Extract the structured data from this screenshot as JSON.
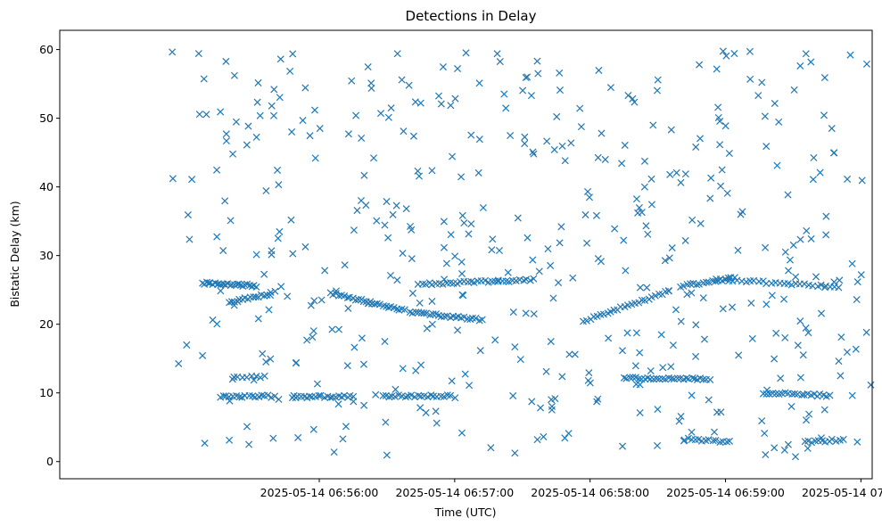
{
  "chart_data": {
    "type": "scatter",
    "title": "Detections in Delay",
    "xlabel": "Time (UTC)",
    "ylabel": "Bistatic Delay (km)",
    "marker": "x",
    "color": "#1f77b4",
    "xlim_seconds_after_0655": [
      -55,
      305
    ],
    "ylim": [
      -2.5,
      62.8
    ],
    "x_ticks": [
      {
        "value": 60,
        "label": "2025-05-14 06:56:00"
      },
      {
        "value": 120,
        "label": "2025-05-14 06:57:00"
      },
      {
        "value": 180,
        "label": "2025-05-14 06:58:00"
      },
      {
        "value": 240,
        "label": "2025-05-14 06:59:00"
      },
      {
        "value": 300,
        "label": "2025-05-14 07:00:00"
      }
    ],
    "y_ticks": [
      {
        "value": 0,
        "label": "0"
      },
      {
        "value": 10,
        "label": "10"
      },
      {
        "value": 20,
        "label": "20"
      },
      {
        "value": 30,
        "label": "30"
      },
      {
        "value": 40,
        "label": "40"
      },
      {
        "value": 50,
        "label": "50"
      },
      {
        "value": 60,
        "label": "60"
      }
    ],
    "x_units": "seconds after 2025-05-14 06:55:00 UTC",
    "tracks": [
      {
        "name": "track-26km-a",
        "x_start": 8,
        "x_end": 32,
        "y_start": 26.0,
        "y_end": 25.6,
        "count": 26
      },
      {
        "name": "track-24km",
        "x_start": 20,
        "x_end": 38,
        "y_start": 23.2,
        "y_end": 24.4,
        "count": 16
      },
      {
        "name": "track-desc-a",
        "x_start": 65,
        "x_end": 98,
        "y_start": 24.5,
        "y_end": 22.0,
        "count": 28
      },
      {
        "name": "track-desc-b",
        "x_start": 100,
        "x_end": 132,
        "y_start": 21.8,
        "y_end": 20.6,
        "count": 26
      },
      {
        "name": "track-26km-b",
        "x_start": 104,
        "x_end": 155,
        "y_start": 25.8,
        "y_end": 26.5,
        "count": 34
      },
      {
        "name": "track-rise",
        "x_start": 177,
        "x_end": 215,
        "y_start": 20.5,
        "y_end": 24.8,
        "count": 26
      },
      {
        "name": "track-arc",
        "x_start": 220,
        "x_end": 244,
        "y_start": 25.5,
        "y_end": 26.8,
        "count": 18
      },
      {
        "name": "track-26km-c",
        "x_start": 236,
        "x_end": 290,
        "y_start": 26.5,
        "y_end": 25.5,
        "count": 30
      },
      {
        "name": "track-26km-d",
        "x_start": 320,
        "x_end": 352,
        "y_start": 26.4,
        "y_end": 25.6,
        "count": 24
      },
      {
        "name": "track-9.5km-a",
        "x_start": 16,
        "x_end": 40,
        "y_start": 9.5,
        "y_end": 9.5,
        "count": 18
      },
      {
        "name": "track-9.5km-b",
        "x_start": 48,
        "x_end": 75,
        "y_start": 9.4,
        "y_end": 9.5,
        "count": 22
      },
      {
        "name": "track-9.5km-c",
        "x_start": 88,
        "x_end": 118,
        "y_start": 9.5,
        "y_end": 9.6,
        "count": 22
      },
      {
        "name": "track-12km",
        "x_start": 195,
        "x_end": 233,
        "y_start": 12.2,
        "y_end": 12.0,
        "count": 30
      },
      {
        "name": "track-10km",
        "x_start": 257,
        "x_end": 286,
        "y_start": 10.0,
        "y_end": 9.6,
        "count": 22
      },
      {
        "name": "track-3km-a",
        "x_start": 222,
        "x_end": 242,
        "y_start": 3.3,
        "y_end": 2.9,
        "count": 14
      },
      {
        "name": "track-3km-b",
        "x_start": 275,
        "x_end": 292,
        "y_start": 2.8,
        "y_end": 3.2,
        "count": 12
      },
      {
        "name": "track-12km-b",
        "x_start": 22,
        "x_end": 36,
        "y_start": 12.2,
        "y_end": 12.4,
        "count": 8
      },
      {
        "name": "track-26km-e",
        "x_start": 340,
        "x_end": 370,
        "y_start": 25.8,
        "y_end": 25.4,
        "count": 16
      }
    ],
    "background_clutter": {
      "x_range": [
        -6,
        372
      ],
      "y_range": [
        0.5,
        59.8
      ],
      "count": 560,
      "seed": 42
    }
  }
}
